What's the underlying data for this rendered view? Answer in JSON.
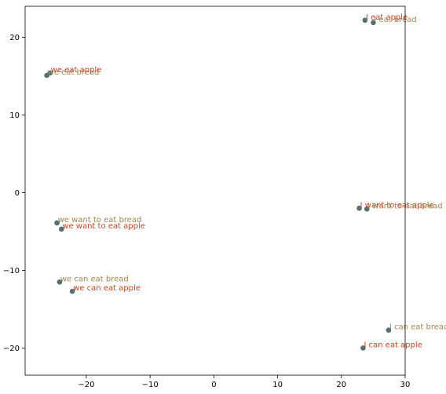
{
  "chart_data": {
    "type": "scatter",
    "title": "",
    "xlabel": "",
    "ylabel": "",
    "xlim": [
      -29.6,
      30
    ],
    "ylim": [
      -23.5,
      24
    ],
    "grid": false,
    "xticks": [
      -20,
      -10,
      0,
      10,
      20,
      30
    ],
    "yticks": [
      -20,
      -10,
      0,
      10,
      20
    ],
    "xtick_labels": [
      "−20",
      "−10",
      "0",
      "10",
      "20",
      "30"
    ],
    "ytick_labels": [
      "−20",
      "−10",
      "0",
      "10",
      "20"
    ],
    "colors": {
      "marker": "#55706e",
      "bread_label": "#a08a55",
      "apple_label": "#d8431f",
      "axis": "#000000"
    },
    "points": [
      {
        "x": 23.7,
        "y": 22.2,
        "label": "I eat apple",
        "kind": "apple"
      },
      {
        "x": 25.0,
        "y": 21.9,
        "label": "I eat bread",
        "kind": "bread"
      },
      {
        "x": -26.2,
        "y": 15.1,
        "label": "we eat bread",
        "kind": "bread"
      },
      {
        "x": -25.7,
        "y": 15.4,
        "label": "we eat apple",
        "kind": "apple"
      },
      {
        "x": 22.8,
        "y": -2.0,
        "label": "I want to eat apple",
        "kind": "apple"
      },
      {
        "x": 24.0,
        "y": -2.1,
        "label": "I want to eat bread",
        "kind": "bread"
      },
      {
        "x": -24.6,
        "y": -3.9,
        "label": "we want to eat bread",
        "kind": "bread"
      },
      {
        "x": -23.9,
        "y": -4.7,
        "label": "we want to eat apple",
        "kind": "apple"
      },
      {
        "x": -24.2,
        "y": -11.5,
        "label": "we can eat bread",
        "kind": "bread"
      },
      {
        "x": -22.2,
        "y": -12.7,
        "label": "we can eat apple",
        "kind": "apple"
      },
      {
        "x": 27.4,
        "y": -17.7,
        "label": "I can eat bread",
        "kind": "bread"
      },
      {
        "x": 23.4,
        "y": -20.0,
        "label": "I can eat apple",
        "kind": "apple"
      }
    ]
  }
}
